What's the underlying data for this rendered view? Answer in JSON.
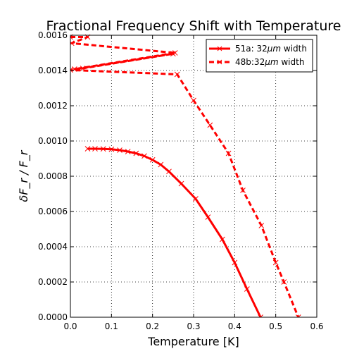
{
  "chart_data": {
    "type": "line",
    "title": "Fractional Frequency Shift with Temperature",
    "xlabel": "Temperature [K]",
    "ylabel": "δF_r / F_r",
    "xlim": [
      0.0,
      0.6
    ],
    "ylim": [
      0.0,
      0.0016
    ],
    "x_ticks": [
      "0.0",
      "0.1",
      "0.2",
      "0.3",
      "0.4",
      "0.5",
      "0.6"
    ],
    "y_ticks": [
      "0.0000",
      "0.0002",
      "0.0004",
      "0.0006",
      "0.0008",
      "0.0010",
      "0.0012",
      "0.0014",
      "0.0016"
    ],
    "x_tick_values": [
      0.0,
      0.1,
      0.2,
      0.3,
      0.4,
      0.5,
      0.6
    ],
    "y_tick_values": [
      0.0,
      0.0002,
      0.0004,
      0.0006,
      0.0008,
      0.001,
      0.0012,
      0.0014,
      0.0016
    ],
    "grid": true,
    "legend_position": "upper right",
    "series": [
      {
        "name": "51a: 32μm width",
        "legend_main": "51a: 32",
        "legend_unit": "μm",
        "legend_tail": " width",
        "style": "solid",
        "color": "#ff0000",
        "marker": "x",
        "points": [
          [
            0.042,
            0.000956
          ],
          [
            0.06,
            0.000956
          ],
          [
            0.08,
            0.000955
          ],
          [
            0.1,
            0.000953
          ],
          [
            0.12,
            0.000948
          ],
          [
            0.14,
            0.00094
          ],
          [
            0.16,
            0.00093
          ],
          [
            0.18,
            0.000915
          ],
          [
            0.2,
            0.000893
          ],
          [
            0.22,
            0.000866
          ],
          [
            0.24,
            0.000827
          ],
          [
            0.27,
            0.000758
          ],
          [
            0.305,
            0.000672
          ],
          [
            0.335,
            0.000568
          ],
          [
            0.37,
            0.000442
          ],
          [
            0.4,
            0.00031
          ],
          [
            0.43,
            0.00016
          ],
          [
            0.463,
            0.0
          ]
        ]
      },
      {
        "name": "48b:32μm width",
        "legend_main": "48b:32",
        "legend_unit": "μm",
        "legend_tail": " width",
        "style": "dashed",
        "color": "#ff0000",
        "marker": "x",
        "points": [
          [
            0.0,
            0.00159
          ],
          [
            0.042,
            0.00159
          ],
          [
            0.003,
            0.001555
          ],
          [
            0.255,
            0.0015
          ],
          [
            0.01,
            0.001408
          ],
          [
            0.03,
            0.001412
          ],
          [
            0.25,
            0.001495
          ],
          [
            0.0,
            0.001403
          ],
          [
            0.26,
            0.001378
          ],
          [
            0.3,
            0.00123
          ],
          [
            0.34,
            0.00109
          ],
          [
            0.385,
            0.00093
          ],
          [
            0.42,
            0.00072
          ],
          [
            0.465,
            0.00052
          ],
          [
            0.5,
            0.00031
          ],
          [
            0.52,
            0.0002
          ],
          [
            0.555,
            0.0
          ]
        ]
      }
    ]
  }
}
